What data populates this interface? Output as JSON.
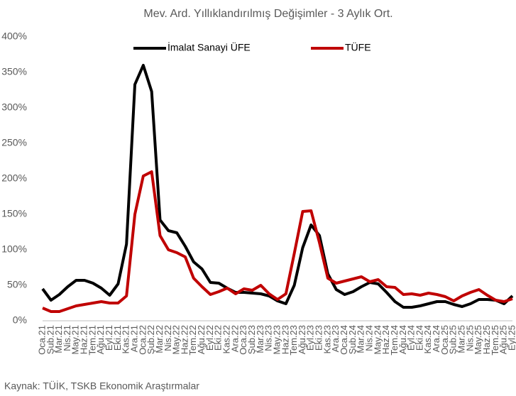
{
  "chart_data": {
    "type": "line",
    "title": "Mev. Ard. Yıllıklandırılmış  Değişimler - 3 Aylık Ort.",
    "source": "Kaynak: TÜİK, TSKB Ekonomik Araştırmalar",
    "categories": [
      "Oca.21",
      "Şub.21",
      "Mar.21",
      "Nis.21",
      "May.21",
      "Haz.21",
      "Tem.21",
      "Ağu.21",
      "Eyl.21",
      "Eki.21",
      "Kas.21",
      "Ara.21",
      "Oca.22",
      "Şub.22",
      "Mar.22",
      "Nis.22",
      "May.22",
      "Haz.22",
      "Tem.22",
      "Ağu.22",
      "Eyl.22",
      "Eki.22",
      "Kas.22",
      "Ara.22",
      "Oca.23",
      "Şub.23",
      "Mar.23",
      "Nis.23",
      "May.23",
      "Haz.23",
      "Tem.23",
      "Ağu.23",
      "Eyl.23",
      "Eki.23",
      "Kas.23",
      "Ara.23",
      "Oca.24",
      "Şub.24",
      "Mar.24",
      "Nis.24",
      "May.24",
      "Haz.24",
      "Tem.24",
      "Ağu.24",
      "Eyl.24",
      "Eki.24",
      "Kas.24",
      "Ara.24",
      "Oca.25",
      "Şub.25",
      "Mar.25",
      "Nis.25",
      "May.25",
      "Haz.25",
      "Tem.25",
      "Ağu.25",
      "Eyl.25"
    ],
    "series": [
      {
        "name": "İmalat Sanayi ÜFE",
        "color": "#000000",
        "values": [
          45,
          29,
          37,
          48,
          57,
          57,
          53,
          46,
          36,
          52,
          108,
          333,
          360,
          323,
          142,
          127,
          124,
          105,
          83,
          73,
          54,
          53,
          46,
          40,
          40,
          39,
          38,
          35,
          28,
          24,
          50,
          103,
          135,
          120,
          66,
          44,
          37,
          41,
          48,
          54,
          52,
          40,
          27,
          19,
          19,
          21,
          24,
          27,
          27,
          23,
          20,
          24,
          30,
          30,
          29,
          24,
          35
        ]
      },
      {
        "name": "TÜFE",
        "color": "#c00000",
        "values": [
          18,
          13,
          13,
          17,
          21,
          23,
          25,
          27,
          25,
          25,
          35,
          150,
          204,
          210,
          120,
          100,
          96,
          90,
          60,
          48,
          37,
          41,
          46,
          38,
          45,
          43,
          50,
          38,
          30,
          38,
          95,
          154,
          155,
          110,
          60,
          53,
          56,
          59,
          62,
          55,
          58,
          48,
          47,
          37,
          38,
          36,
          39,
          37,
          34,
          28,
          35,
          40,
          44,
          36,
          29,
          27,
          31
        ]
      }
    ],
    "ylim": [
      0,
      400
    ],
    "yticks": [
      {
        "value": 0,
        "label": "0%"
      },
      {
        "value": 50,
        "label": "50%"
      },
      {
        "value": 100,
        "label": "100%"
      },
      {
        "value": 150,
        "label": "150%"
      },
      {
        "value": 200,
        "label": "200%"
      },
      {
        "value": 250,
        "label": "250%"
      },
      {
        "value": 300,
        "label": "300%"
      },
      {
        "value": 350,
        "label": "350%"
      },
      {
        "value": 400,
        "label": "400%"
      }
    ],
    "legend": "top"
  }
}
